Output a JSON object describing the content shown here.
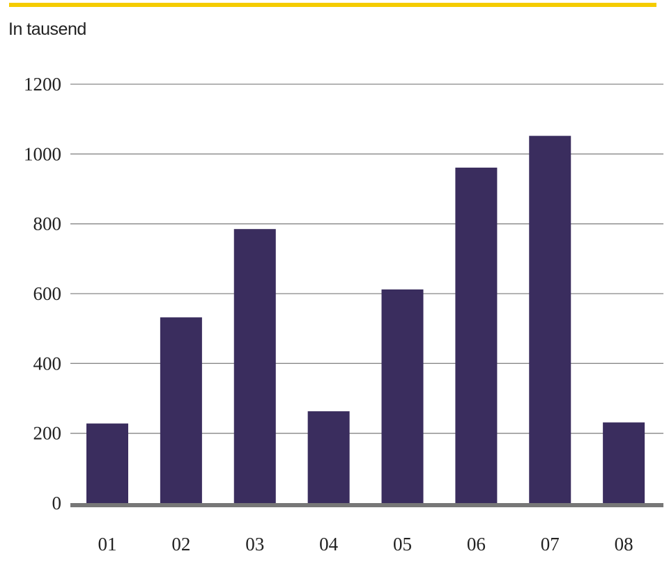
{
  "chart_data": {
    "type": "bar",
    "title": "",
    "ylabel": "In tausend",
    "xlabel": "",
    "categories": [
      "01",
      "02",
      "03",
      "04",
      "05",
      "06",
      "07",
      "08"
    ],
    "values": [
      228,
      532,
      785,
      263,
      612,
      961,
      1052,
      231
    ],
    "ylim": [
      0,
      1200
    ],
    "yticks": [
      0,
      200,
      400,
      600,
      800,
      1000,
      1200
    ],
    "grid": true,
    "colors": {
      "bar": "#3a2d5e",
      "grid": "#888888",
      "axis": "#777777",
      "accent": "#f5cc00"
    }
  }
}
